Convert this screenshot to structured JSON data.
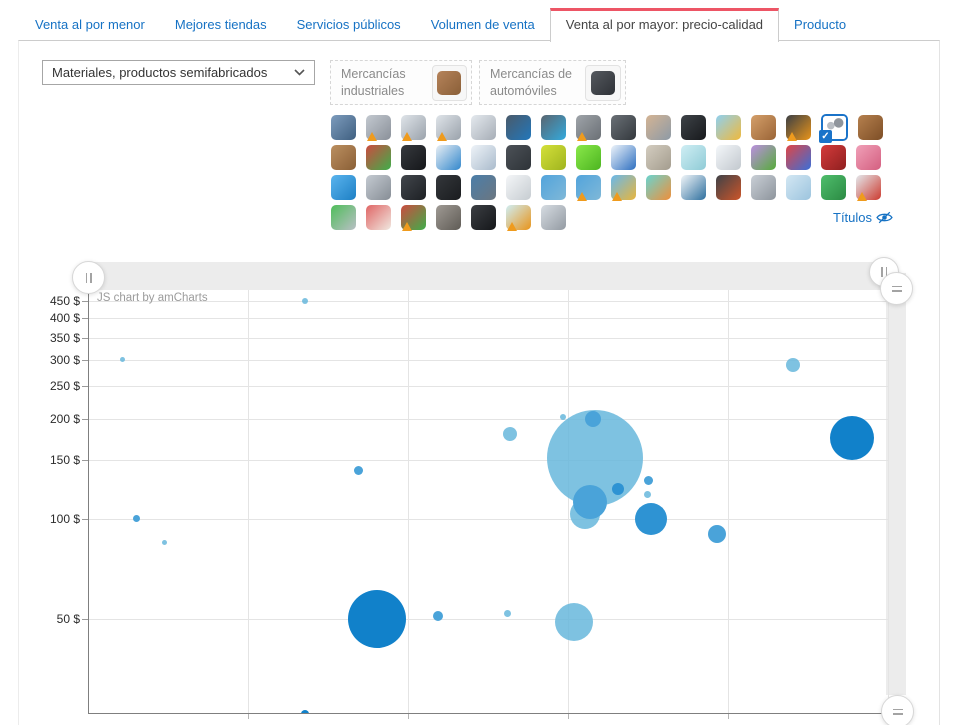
{
  "colors": {
    "link_blue": "#1672c4",
    "active_tab_red": "#ed5565",
    "grid": "#e4e4e4"
  },
  "tabs": [
    {
      "label": "Venta al por menor",
      "active": false
    },
    {
      "label": "Mejores tiendas",
      "active": false
    },
    {
      "label": "Servicios públicos",
      "active": false
    },
    {
      "label": "Volumen de venta",
      "active": false
    },
    {
      "label": "Venta al por mayor: precio-calidad",
      "active": true
    },
    {
      "label": "Producto",
      "active": false
    }
  ],
  "filters": {
    "category_select": {
      "value": "Materiales, productos semifabricados"
    },
    "groups": [
      {
        "label": "Mercancías industriales",
        "icon": "fabric-roll",
        "icon_colors": [
          "#b5835a",
          "#8a5f38"
        ]
      },
      {
        "label": "Mercancías de automóviles",
        "icon": "piston",
        "icon_colors": [
          "#55595f",
          "#2e3136"
        ]
      }
    ],
    "titles_toggle": {
      "label": "Títulos"
    }
  },
  "icons": {
    "rows": [
      [
        {
          "n": "electric-motor",
          "c": [
            "#7d9cbd",
            "#3f5f80"
          ]
        },
        {
          "n": "steel-sheets",
          "c": [
            "#c3c9d0",
            "#8a9099"
          ],
          "w": true
        },
        {
          "n": "steel-profiles",
          "c": [
            "#dfe4e9",
            "#9aa2ab"
          ],
          "w": true
        },
        {
          "n": "steel-angles",
          "c": [
            "#dfe4e9",
            "#9aa2ab"
          ],
          "w": true
        },
        {
          "n": "steel-angles-2",
          "c": [
            "#e4e9ee",
            "#a6adb6"
          ]
        },
        {
          "n": "water-pump",
          "c": [
            "#4a5a6a",
            "#2277bb"
          ]
        },
        {
          "n": "control-panel",
          "c": [
            "#5a6570",
            "#33aadd"
          ]
        },
        {
          "n": "ore-stones",
          "c": [
            "#9fa4a9",
            "#6a6f75"
          ],
          "w": true
        },
        {
          "n": "wire-mesh-ball",
          "c": [
            "#6a7076",
            "#33383d"
          ]
        },
        {
          "n": "artillery-shell",
          "c": [
            "#d4b494",
            "#8d9aa6"
          ]
        },
        {
          "n": "rubber-roll",
          "c": [
            "#3e4348",
            "#17191c"
          ]
        },
        {
          "n": "chemical-flask",
          "c": [
            "#8fd0f0",
            "#f0b93c"
          ]
        },
        {
          "n": "timber-sticks",
          "c": [
            "#d49f6a",
            "#9a6436"
          ]
        },
        {
          "n": "microchip",
          "c": [
            "#3b3f44",
            "#e8941a"
          ],
          "w": true
        },
        {
          "n": "hardware-parts",
          "c": [
            "#ffffff",
            "#ffffff"
          ],
          "s": true
        },
        {
          "n": "leather-hide",
          "c": [
            "#b5804e",
            "#7d4e26"
          ]
        }
      ],
      [
        {
          "n": "sand-pile",
          "c": [
            "#bb8f60",
            "#8a5f36"
          ]
        },
        {
          "n": "paint-cans",
          "c": [
            "#cc4b40",
            "#3fae4a"
          ]
        },
        {
          "n": "microchip-black",
          "c": [
            "#36393e",
            "#15171a"
          ]
        },
        {
          "n": "aircraft-wing",
          "c": [
            "#e8eef4",
            "#3388cc"
          ]
        },
        {
          "n": "sail-part",
          "c": [
            "#eef3f8",
            "#aabbcc"
          ]
        },
        {
          "n": "propeller",
          "c": [
            "#4c5157",
            "#2e3338"
          ]
        },
        {
          "n": "flask-yellow",
          "c": [
            "#d4e03a",
            "#9fb41e"
          ]
        },
        {
          "n": "bottle-green",
          "c": [
            "#8ae84a",
            "#4cb520"
          ]
        },
        {
          "n": "detergent-bottle",
          "c": [
            "#eef4fa",
            "#2e6fc0"
          ]
        },
        {
          "n": "concrete-blocks",
          "c": [
            "#d4cdc0",
            "#a39c8e"
          ]
        },
        {
          "n": "glass-panes",
          "c": [
            "#cfeef4",
            "#8fcbd6"
          ]
        },
        {
          "n": "mirror",
          "c": [
            "#f4f7fa",
            "#c2c8ce"
          ]
        },
        {
          "n": "flower",
          "c": [
            "#bb8fe0",
            "#56ab3a"
          ]
        },
        {
          "n": "molecule-model",
          "c": [
            "#e04545",
            "#3a6fd8"
          ]
        },
        {
          "n": "felt-boot",
          "c": [
            "#d43b3b",
            "#8f1f1f"
          ]
        },
        {
          "n": "pin-cushion",
          "c": [
            "#f0a0b8",
            "#d45f80"
          ]
        }
      ],
      [
        {
          "n": "led-diode",
          "c": [
            "#5ab4ee",
            "#1d7fc4"
          ]
        },
        {
          "n": "metal-ingot",
          "c": [
            "#c4cad1",
            "#868d95"
          ]
        },
        {
          "n": "chip-module",
          "c": [
            "#42464c",
            "#1d2024"
          ]
        },
        {
          "n": "radial-engine",
          "c": [
            "#34373b",
            "#1a1c1f"
          ]
        },
        {
          "n": "camera-motor",
          "c": [
            "#4b7ea9",
            "#6b7680"
          ]
        },
        {
          "n": "paper-roll",
          "c": [
            "#f4f6f8",
            "#c6ccd1"
          ]
        },
        {
          "n": "ball-valve",
          "c": [
            "#52a4dc",
            "#7fb8d8"
          ]
        },
        {
          "n": "ball-valve-2",
          "c": [
            "#52a4dc",
            "#7fb8d8"
          ],
          "w": true
        },
        {
          "n": "lab-flask",
          "c": [
            "#68b8ec",
            "#e8b53c"
          ],
          "w": true
        },
        {
          "n": "growth-curve",
          "c": [
            "#69d4d0",
            "#ef8f3a"
          ]
        },
        {
          "n": "boat-hull",
          "c": [
            "#f2f6f9",
            "#2e6f9e"
          ]
        },
        {
          "n": "circuit-board",
          "c": [
            "#3e4248",
            "#cc5529"
          ]
        },
        {
          "n": "steel-rolls",
          "c": [
            "#c9cfd6",
            "#8d949c"
          ]
        },
        {
          "n": "fabric-stack",
          "c": [
            "#d3e7f3",
            "#9cc4de"
          ]
        },
        {
          "n": "green-roll",
          "c": [
            "#4fbe6c",
            "#2b8a43"
          ]
        },
        {
          "n": "cable-spool",
          "c": [
            "#e4e8ec",
            "#cc3b30"
          ],
          "w": true
        }
      ],
      [
        {
          "n": "recycling",
          "c": [
            "#4fbe5a",
            "#b9bfc5"
          ]
        },
        {
          "n": "wire-coil",
          "c": [
            "#e06565",
            "#f0e8e0"
          ]
        },
        {
          "n": "paint-cans-2",
          "c": [
            "#cc4b40",
            "#3fae4a"
          ],
          "w": true
        },
        {
          "n": "mineral-rock",
          "c": [
            "#9f9a94",
            "#5f5b55"
          ]
        },
        {
          "n": "hand-ring",
          "c": [
            "#3b3e43",
            "#15171a"
          ]
        },
        {
          "n": "glass-sheets",
          "c": [
            "#cfeef4",
            "#e8941a"
          ],
          "w": true
        },
        {
          "n": "metal-funnel",
          "c": [
            "#d6dce2",
            "#939aa2"
          ]
        }
      ]
    ]
  },
  "chart_data": {
    "type": "scatter",
    "subtype": "bubble",
    "watermark": "JS chart by amCharts",
    "legend": "none",
    "grid": true,
    "y_axis": {
      "unit": "$",
      "scale": "logarithmic",
      "ticks": [
        450,
        400,
        350,
        300,
        250,
        200,
        150,
        100,
        50
      ],
      "tick_suffix": " $"
    },
    "x_axis": {
      "range": [
        0,
        100
      ],
      "gridline_values": [
        20,
        40,
        60,
        80,
        100
      ],
      "labels_visible": false
    },
    "shades": {
      "light": "rgba(103,183,220,0.85)",
      "medium": "#4aa3d9",
      "mediumdark": "#2e93d3",
      "dark": "#1181ca"
    },
    "points": [
      {
        "x": 4.3,
        "price": 300,
        "r": 2.5,
        "shade": "light"
      },
      {
        "x": 27.1,
        "price": 450,
        "r": 3,
        "shade": "light"
      },
      {
        "x": 6.1,
        "price": 100,
        "r": 3.5,
        "shade": "medium"
      },
      {
        "x": 9.6,
        "price": 85,
        "r": 2.5,
        "shade": "light"
      },
      {
        "x": 33.8,
        "price": 140,
        "r": 4.5,
        "shade": "medium"
      },
      {
        "x": 52.8,
        "price": 180,
        "r": 7,
        "shade": "light"
      },
      {
        "x": 59.4,
        "price": 202,
        "r": 3,
        "shade": "light"
      },
      {
        "x": 88.1,
        "price": 290,
        "r": 7,
        "shade": "light"
      },
      {
        "x": 62.1,
        "price": 103,
        "r": 15,
        "shade": "light"
      },
      {
        "x": 63.4,
        "price": 152,
        "r": 48,
        "shade": "light"
      },
      {
        "x": 63.1,
        "price": 200,
        "r": 8,
        "shade": "medium"
      },
      {
        "x": 66.3,
        "price": 123,
        "r": 6,
        "shade": "mediumdark"
      },
      {
        "x": 70.0,
        "price": 130,
        "r": 4.5,
        "shade": "medium"
      },
      {
        "x": 69.9,
        "price": 118,
        "r": 3.5,
        "shade": "light"
      },
      {
        "x": 62.8,
        "price": 112,
        "r": 17,
        "shade": "medium"
      },
      {
        "x": 70.4,
        "price": 100,
        "r": 16,
        "shade": "mediumdark"
      },
      {
        "x": 78.6,
        "price": 90,
        "r": 9,
        "shade": "medium"
      },
      {
        "x": 95.5,
        "price": 175,
        "r": 22,
        "shade": "dark"
      },
      {
        "x": 36.1,
        "price": 50,
        "r": 29,
        "shade": "dark"
      },
      {
        "x": 43.8,
        "price": 51,
        "r": 5,
        "shade": "medium"
      },
      {
        "x": 52.4,
        "price": 52,
        "r": 3.5,
        "shade": "light"
      },
      {
        "x": 60.8,
        "price": 49,
        "r": 19,
        "shade": "light"
      },
      {
        "x": 27.1,
        "price": 26,
        "r": 4,
        "shade": "dark"
      }
    ]
  }
}
